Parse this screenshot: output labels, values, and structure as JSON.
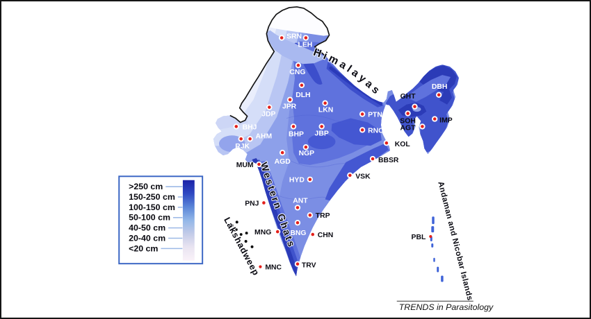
{
  "figure": {
    "attribution": "TRENDS in Parasitology"
  },
  "legend": {
    "items": [
      ">250 cm",
      "150-250 cm",
      "100-150 cm",
      "50-100 cm",
      "40-50 cm",
      "20-40 cm",
      "<20 cm"
    ],
    "gradient": [
      "#1b23a8",
      "#2f49c2",
      "#5b86d8",
      "#93b7e8",
      "#c3cbe8",
      "#e9e4f1",
      "#faf2f9"
    ]
  },
  "colors": {
    "marker_red": "#e3201b",
    "map_dark_blue": "#2b3bb7",
    "map_medium_blue": "#5f72dd",
    "map_light_blue": "#b9c6f3",
    "legend_border": "#3b66c4",
    "island_blue": "#3f63d8"
  },
  "map": {
    "region_labels": {
      "himalayas": "Himalayas",
      "western_ghats": "Western Ghats",
      "lakshadweep": "Lakshadweep",
      "andaman": "Andaman and Nicobar Islands"
    },
    "cities": [
      {
        "code": "SRN",
        "dot": [
          405,
          53
        ],
        "label": [
          412,
          54
        ],
        "anchor": "start",
        "color": "white",
        "ring": true
      },
      {
        "code": "LEH",
        "dot": [
          440,
          53
        ],
        "label": [
          439,
          66
        ],
        "anchor": "middle",
        "color": "white",
        "ring": true
      },
      {
        "code": "CNG",
        "dot": [
          429,
          93
        ],
        "label": [
          428,
          106
        ],
        "anchor": "middle",
        "color": "white",
        "ring": true
      },
      {
        "code": "DLH",
        "dot": [
          434,
          122
        ],
        "label": [
          436,
          139
        ],
        "anchor": "middle",
        "color": "white",
        "ring": true
      },
      {
        "code": "JPR",
        "dot": [
          417,
          143
        ],
        "label": [
          416,
          156
        ],
        "anchor": "middle",
        "color": "white",
        "ring": true
      },
      {
        "code": "LKN",
        "dot": [
          468,
          148
        ],
        "label": [
          469,
          161
        ],
        "anchor": "middle",
        "color": "white",
        "ring": true
      },
      {
        "code": "JDP",
        "dot": [
          387,
          154
        ],
        "label": [
          386,
          167
        ],
        "anchor": "middle",
        "color": "white",
        "ring": true
      },
      {
        "code": "PTN",
        "dot": [
          522,
          164
        ],
        "label": [
          530,
          168
        ],
        "anchor": "start",
        "color": "white",
        "ring": true
      },
      {
        "code": "BHJ",
        "dot": [
          339,
          182
        ],
        "label": [
          348,
          186
        ],
        "anchor": "start",
        "color": "white",
        "ring": true
      },
      {
        "code": "AHM",
        "dot": [
          359,
          200
        ],
        "label": [
          367,
          199
        ],
        "anchor": "start",
        "color": "white",
        "ring": true
      },
      {
        "code": "BHP",
        "dot": [
          422,
          182
        ],
        "label": [
          426,
          196
        ],
        "anchor": "middle",
        "color": "white",
        "ring": true
      },
      {
        "code": "JBP",
        "dot": [
          463,
          182
        ],
        "label": [
          463,
          195
        ],
        "anchor": "middle",
        "color": "white",
        "ring": true
      },
      {
        "code": "RNC",
        "dot": [
          522,
          187
        ],
        "label": [
          530,
          191
        ],
        "anchor": "start",
        "color": "white",
        "ring": true
      },
      {
        "code": "RJK",
        "dot": [
          346,
          200
        ],
        "label": [
          348,
          214
        ],
        "anchor": "middle",
        "color": "white",
        "ring": true
      },
      {
        "code": "NGP",
        "dot": [
          440,
          212
        ],
        "label": [
          441,
          224
        ],
        "anchor": "middle",
        "color": "white",
        "ring": true
      },
      {
        "code": "KOL",
        "dot": [
          557,
          206
        ],
        "label": [
          569,
          211
        ],
        "anchor": "start",
        "color": "black",
        "ring": true
      },
      {
        "code": "MUM",
        "dot": [
          372,
          237
        ],
        "label": [
          364,
          241
        ],
        "anchor": "end",
        "color": "black",
        "ring": true
      },
      {
        "code": "AGD",
        "dot": [
          406,
          220
        ],
        "label": [
          406,
          236
        ],
        "anchor": "middle",
        "color": "white",
        "ring": true
      },
      {
        "code": "BBSR",
        "dot": [
          537,
          229
        ],
        "label": [
          545,
          234
        ],
        "anchor": "start",
        "color": "black",
        "ring": true
      },
      {
        "code": "VSK",
        "dot": [
          504,
          253
        ],
        "label": [
          512,
          258
        ],
        "anchor": "start",
        "color": "black",
        "ring": true
      },
      {
        "code": "HYD",
        "dot": [
          446,
          259
        ],
        "label": [
          438,
          263
        ],
        "anchor": "end",
        "color": "white",
        "ring": true
      },
      {
        "code": "ANT",
        "dot": [
          428,
          300
        ],
        "label": [
          432,
          293
        ],
        "anchor": "middle",
        "color": "white",
        "ring": true
      },
      {
        "code": "PNJ",
        "dot": [
          379,
          293
        ],
        "label": [
          372,
          297
        ],
        "anchor": "end",
        "color": "black",
        "ring": true
      },
      {
        "code": "TRP",
        "dot": [
          446,
          311
        ],
        "label": [
          454,
          315
        ],
        "anchor": "start",
        "color": "black",
        "ring": true
      },
      {
        "code": "BNG",
        "dot": [
          428,
          322
        ],
        "label": [
          429,
          340
        ],
        "anchor": "middle",
        "color": "white",
        "ring": true
      },
      {
        "code": "MNG",
        "dot": [
          399,
          335
        ],
        "label": [
          390,
          339
        ],
        "anchor": "end",
        "color": "black",
        "ring": true
      },
      {
        "code": "CHN",
        "dot": [
          450,
          339
        ],
        "label": [
          457,
          343
        ],
        "anchor": "start",
        "color": "black",
        "ring": true
      },
      {
        "code": "MNC",
        "dot": [
          374,
          386
        ],
        "label": [
          381,
          390
        ],
        "anchor": "start",
        "color": "black",
        "ring": false
      },
      {
        "code": "TRV",
        "dot": [
          428,
          382
        ],
        "label": [
          434,
          387
        ],
        "anchor": "start",
        "color": "black",
        "ring": true
      },
      {
        "code": "GHT",
        "dot": [
          598,
          153
        ],
        "label": [
          588,
          141
        ],
        "anchor": "middle",
        "color": "black",
        "ring": true
      },
      {
        "code": "SOH",
        "dot": [
          588,
          163
        ],
        "label": [
          588,
          177
        ],
        "anchor": "middle",
        "color": "black",
        "ring": true
      },
      {
        "code": "AGT",
        "dot": [
          609,
          182
        ],
        "label": [
          599,
          187
        ],
        "anchor": "end",
        "color": "black",
        "ring": true
      },
      {
        "code": "IMP",
        "dot": [
          627,
          171
        ],
        "label": [
          634,
          176
        ],
        "anchor": "start",
        "color": "black",
        "ring": true
      },
      {
        "code": "DBH",
        "dot": [
          633,
          136
        ],
        "label": [
          634,
          127
        ],
        "anchor": "middle",
        "color": "white",
        "ring": true
      },
      {
        "code": "PBL",
        "dot": [
          621,
          342
        ],
        "label": [
          614,
          346
        ],
        "anchor": "end",
        "color": "black",
        "ring": false
      }
    ],
    "lakshadweep_islands": [
      [
        333,
        326
      ],
      [
        340,
        321
      ],
      [
        339,
        332
      ],
      [
        346,
        339
      ],
      [
        354,
        337
      ],
      [
        353,
        349
      ],
      [
        362,
        357
      ]
    ],
    "andaman_islands": [
      [
        623,
        313,
        3.5,
        11
      ],
      [
        622,
        327,
        4,
        9
      ],
      [
        620.5,
        342,
        3,
        7
      ],
      [
        622,
        352,
        3,
        6
      ],
      [
        625,
        373,
        2.5,
        6
      ],
      [
        630,
        386,
        3,
        8
      ],
      [
        636,
        399,
        3.5,
        9
      ]
    ]
  }
}
